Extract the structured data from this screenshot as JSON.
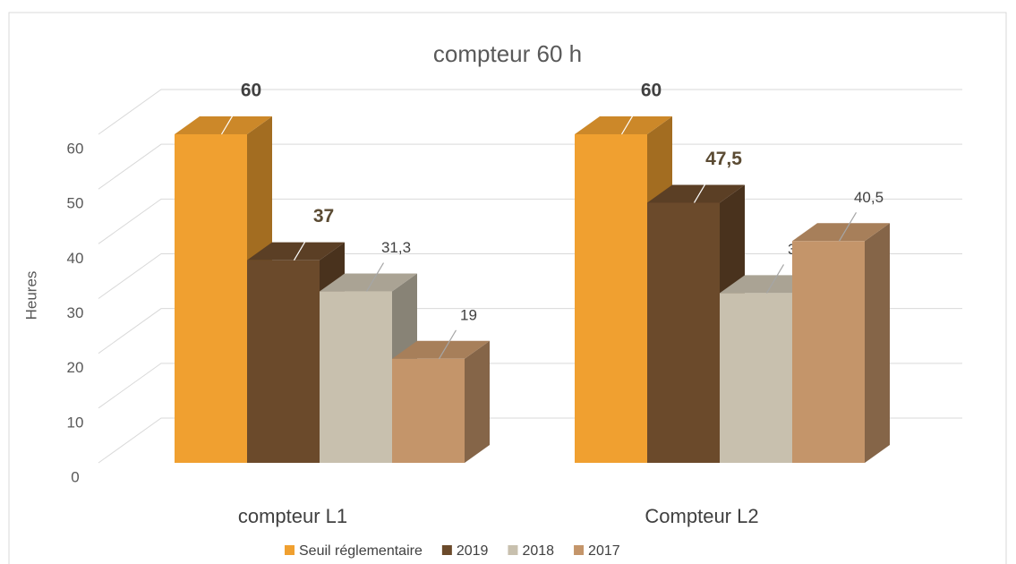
{
  "chart_data": {
    "type": "bar3d",
    "title": "compteur 60 h",
    "y_label": "Heures",
    "categories": [
      "compteur L1",
      "Compteur L2"
    ],
    "series": [
      {
        "name": "Seuil réglementaire",
        "color": "#F0A030",
        "values": [
          60,
          60
        ],
        "value_labels": [
          "60",
          "60"
        ]
      },
      {
        "name": "2019",
        "color": "#6B4A2B",
        "values": [
          37,
          47.5
        ],
        "value_labels": [
          "37",
          "47,5"
        ]
      },
      {
        "name": "2018",
        "color": "#C8C0AE",
        "values": [
          31.3,
          31
        ],
        "value_labels": [
          "31,3",
          "31"
        ]
      },
      {
        "name": "2017",
        "color": "#C4956A",
        "values": [
          19,
          40.5
        ],
        "value_labels": [
          "19",
          "40,5"
        ]
      }
    ],
    "ylim": [
      0,
      60
    ],
    "yticks": [
      0,
      10,
      20,
      30,
      40,
      50,
      60
    ],
    "grid": true,
    "legend": "bottom"
  }
}
